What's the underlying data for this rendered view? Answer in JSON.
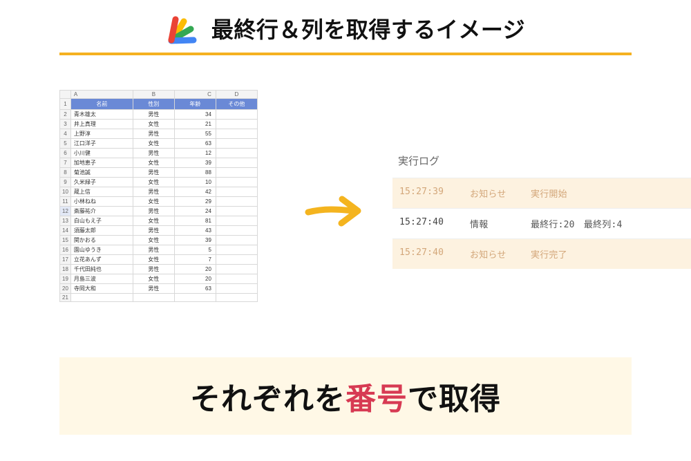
{
  "header": {
    "title": "最終行＆列を取得するイメージ",
    "underline_color": "#f5b120",
    "logo_colors": {
      "red": "#ea4335",
      "yellow": "#fbbc04",
      "green": "#34a853",
      "blue": "#4285f4"
    }
  },
  "spreadsheet": {
    "col_letters": [
      "A",
      "B",
      "C",
      "D"
    ],
    "header_row": [
      "名前",
      "性別",
      "年齢",
      "その他"
    ],
    "header_bg": "#6a89d6",
    "header_fg": "#ffffff",
    "selected_rowhead": 12,
    "rows": [
      [
        "青木雄太",
        "男性",
        "34",
        ""
      ],
      [
        "井上真理",
        "女性",
        "21",
        ""
      ],
      [
        "上野淳",
        "男性",
        "55",
        ""
      ],
      [
        "江口洋子",
        "女性",
        "63",
        ""
      ],
      [
        "小川健",
        "男性",
        "12",
        ""
      ],
      [
        "加地恵子",
        "女性",
        "39",
        ""
      ],
      [
        "菊池誠",
        "男性",
        "88",
        ""
      ],
      [
        "久米緑子",
        "女性",
        "10",
        ""
      ],
      [
        "蔵上信",
        "男性",
        "42",
        ""
      ],
      [
        "小林ねね",
        "女性",
        "29",
        ""
      ],
      [
        "斎藤祐介",
        "男性",
        "24",
        ""
      ],
      [
        "白山もえ子",
        "女性",
        "81",
        ""
      ],
      [
        "須藤太郎",
        "男性",
        "43",
        ""
      ],
      [
        "関かおる",
        "女性",
        "39",
        ""
      ],
      [
        "園山ゆうき",
        "男性",
        "5",
        ""
      ],
      [
        "立花あんず",
        "女性",
        "7",
        ""
      ],
      [
        "千代田純也",
        "男性",
        "20",
        ""
      ],
      [
        "月島三波",
        "女性",
        "20",
        ""
      ],
      [
        "寺岡大和",
        "男性",
        "63",
        ""
      ]
    ],
    "trailing_empty_rows": 1
  },
  "arrow": {
    "color": "#f4b41f"
  },
  "log": {
    "title": "実行ログ",
    "highlight_bg": "#fdf2e0",
    "dim_color": "#d3a77a",
    "rows": [
      {
        "time": "15:27:39",
        "level": "お知らせ",
        "msg": "実行開始",
        "highlight": true
      },
      {
        "time": "15:27:40",
        "level": "情報",
        "msg": "最終行:20　最終列:4",
        "highlight": false
      },
      {
        "time": "15:27:40",
        "level": "お知らせ",
        "msg": "実行完了",
        "highlight": true
      }
    ]
  },
  "banner": {
    "bg": "#fff8e6",
    "pre": "それぞれを",
    "accent": "番号",
    "post": "で取得",
    "accent_color": "#d73a53"
  }
}
